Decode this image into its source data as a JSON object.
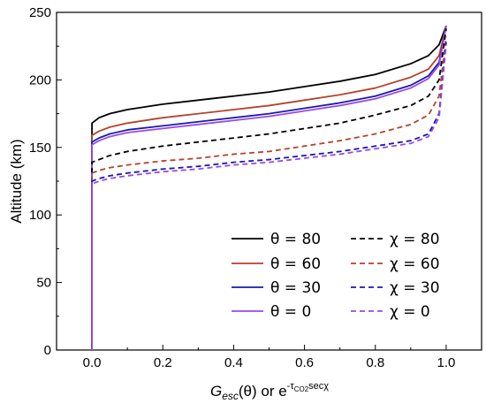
{
  "chart_data": {
    "type": "line",
    "xlabel": {
      "base": "G",
      "sub": "esc",
      "tail": "(θ) or e",
      "sup": "-τ",
      "sup_sub": "CO2",
      "sup_tail": "secχ"
    },
    "ylabel": "Altitude (km)",
    "xlim": [
      -0.1,
      1.1
    ],
    "ylim": [
      0,
      250
    ],
    "x_ticks": [
      "0.0",
      "0.2",
      "0.4",
      "0.6",
      "0.8",
      "1.0"
    ],
    "y_ticks": [
      "0",
      "50",
      "100",
      "150",
      "200",
      "250"
    ],
    "legend_position": "bottom-right",
    "series": [
      {
        "name": "θ = 80",
        "color": "#000000",
        "dash": "solid",
        "points": [
          [
            0,
            0
          ],
          [
            0,
            140
          ],
          [
            0,
            160
          ],
          [
            0,
            168
          ],
          [
            0.02,
            172
          ],
          [
            0.05,
            175
          ],
          [
            0.1,
            178
          ],
          [
            0.2,
            182
          ],
          [
            0.3,
            185
          ],
          [
            0.4,
            188
          ],
          [
            0.5,
            191
          ],
          [
            0.6,
            195
          ],
          [
            0.7,
            199
          ],
          [
            0.8,
            204
          ],
          [
            0.9,
            212
          ],
          [
            0.95,
            218
          ],
          [
            0.98,
            226
          ],
          [
            1.0,
            240
          ]
        ]
      },
      {
        "name": "θ = 60",
        "color": "#b5432c",
        "dash": "solid",
        "points": [
          [
            0,
            0
          ],
          [
            0,
            135
          ],
          [
            0,
            152
          ],
          [
            0,
            159
          ],
          [
            0.02,
            162
          ],
          [
            0.05,
            165
          ],
          [
            0.1,
            168
          ],
          [
            0.2,
            172
          ],
          [
            0.3,
            175
          ],
          [
            0.4,
            178
          ],
          [
            0.5,
            181
          ],
          [
            0.6,
            185
          ],
          [
            0.7,
            189
          ],
          [
            0.8,
            194
          ],
          [
            0.9,
            202
          ],
          [
            0.95,
            208
          ],
          [
            0.98,
            218
          ],
          [
            1.0,
            240
          ]
        ]
      },
      {
        "name": "θ = 30",
        "color": "#1a1ab0",
        "dash": "solid",
        "points": [
          [
            0,
            0
          ],
          [
            0,
            130
          ],
          [
            0,
            148
          ],
          [
            0,
            154
          ],
          [
            0.02,
            157
          ],
          [
            0.05,
            160
          ],
          [
            0.1,
            163
          ],
          [
            0.2,
            166
          ],
          [
            0.3,
            169
          ],
          [
            0.4,
            172
          ],
          [
            0.5,
            175
          ],
          [
            0.6,
            179
          ],
          [
            0.7,
            183
          ],
          [
            0.8,
            188
          ],
          [
            0.9,
            196
          ],
          [
            0.95,
            203
          ],
          [
            0.98,
            213
          ],
          [
            1.0,
            240
          ]
        ]
      },
      {
        "name": "θ = 0",
        "color": "#9a4ae8",
        "dash": "solid",
        "points": [
          [
            0,
            0
          ],
          [
            0,
            128
          ],
          [
            0,
            146
          ],
          [
            0,
            152
          ],
          [
            0.02,
            155
          ],
          [
            0.05,
            158
          ],
          [
            0.1,
            161
          ],
          [
            0.2,
            164
          ],
          [
            0.3,
            167
          ],
          [
            0.4,
            170
          ],
          [
            0.5,
            173
          ],
          [
            0.6,
            177
          ],
          [
            0.7,
            181
          ],
          [
            0.8,
            186
          ],
          [
            0.9,
            194
          ],
          [
            0.95,
            201
          ],
          [
            0.98,
            211
          ],
          [
            1.0,
            240
          ]
        ]
      },
      {
        "name": "χ = 80",
        "color": "#000000",
        "dash": "dashed",
        "points": [
          [
            0,
            0
          ],
          [
            0,
            120
          ],
          [
            0,
            135
          ],
          [
            0,
            139
          ],
          [
            0.02,
            141
          ],
          [
            0.05,
            144
          ],
          [
            0.1,
            147
          ],
          [
            0.2,
            151
          ],
          [
            0.3,
            154
          ],
          [
            0.4,
            157
          ],
          [
            0.5,
            160
          ],
          [
            0.6,
            164
          ],
          [
            0.7,
            168
          ],
          [
            0.8,
            174
          ],
          [
            0.9,
            181
          ],
          [
            0.95,
            188
          ],
          [
            0.98,
            200
          ],
          [
            1.0,
            238
          ]
        ]
      },
      {
        "name": "χ = 60",
        "color": "#b5432c",
        "dash": "dashed",
        "points": [
          [
            0,
            0
          ],
          [
            0,
            112
          ],
          [
            0,
            127
          ],
          [
            0,
            131
          ],
          [
            0.02,
            133
          ],
          [
            0.05,
            135
          ],
          [
            0.1,
            137
          ],
          [
            0.2,
            140
          ],
          [
            0.3,
            142
          ],
          [
            0.4,
            145
          ],
          [
            0.5,
            147
          ],
          [
            0.6,
            151
          ],
          [
            0.7,
            155
          ],
          [
            0.8,
            160
          ],
          [
            0.9,
            167
          ],
          [
            0.95,
            174
          ],
          [
            0.98,
            188
          ],
          [
            1.0,
            232
          ]
        ]
      },
      {
        "name": "χ = 30",
        "color": "#1a1ab0",
        "dash": "dashed",
        "points": [
          [
            0,
            0
          ],
          [
            0,
            108
          ],
          [
            0,
            121
          ],
          [
            0,
            125
          ],
          [
            0.02,
            127
          ],
          [
            0.05,
            129
          ],
          [
            0.1,
            131
          ],
          [
            0.2,
            134
          ],
          [
            0.3,
            136
          ],
          [
            0.4,
            139
          ],
          [
            0.5,
            141
          ],
          [
            0.6,
            144
          ],
          [
            0.7,
            147
          ],
          [
            0.8,
            151
          ],
          [
            0.9,
            155
          ],
          [
            0.95,
            160
          ],
          [
            0.98,
            175
          ],
          [
            1.0,
            228
          ]
        ]
      },
      {
        "name": "χ = 0",
        "color": "#9a4ae8",
        "dash": "dashed",
        "points": [
          [
            0,
            0
          ],
          [
            0,
            106
          ],
          [
            0,
            119
          ],
          [
            0,
            123
          ],
          [
            0.02,
            125
          ],
          [
            0.05,
            127
          ],
          [
            0.1,
            129
          ],
          [
            0.2,
            132
          ],
          [
            0.3,
            134
          ],
          [
            0.4,
            137
          ],
          [
            0.5,
            139
          ],
          [
            0.6,
            142
          ],
          [
            0.7,
            145
          ],
          [
            0.8,
            149
          ],
          [
            0.9,
            153
          ],
          [
            0.95,
            158
          ],
          [
            0.98,
            172
          ],
          [
            1.0,
            226
          ]
        ]
      }
    ]
  }
}
